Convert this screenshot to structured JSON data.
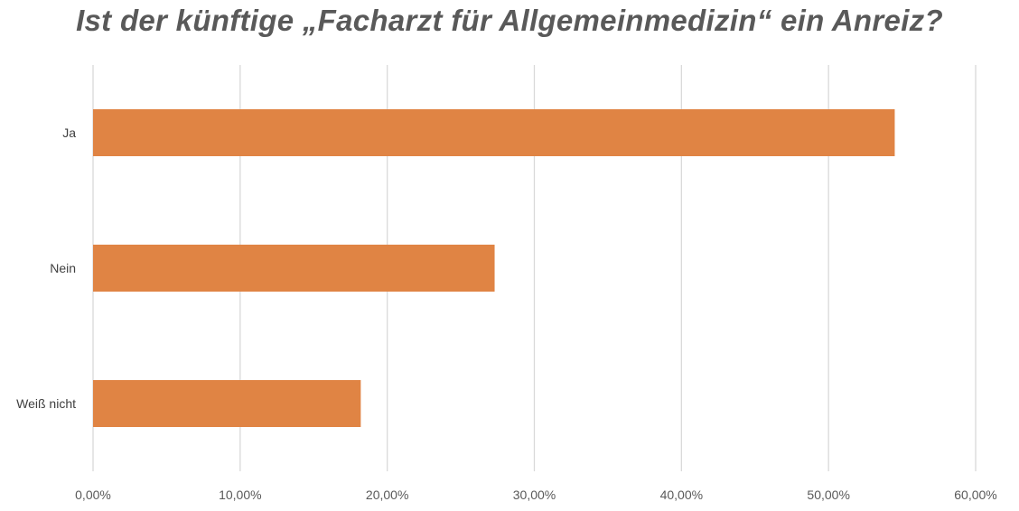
{
  "colors": {
    "bar": "#E08444",
    "grid": "#D9D9D9",
    "title": "#595959",
    "axis_text": "#595959"
  },
  "chart_data": {
    "type": "bar",
    "orientation": "horizontal",
    "title": "Ist der künftige „Facharzt für Allgemeinmedizin“ ein Anreiz?",
    "categories": [
      "Ja",
      "Nein",
      "Weiß nicht"
    ],
    "values": [
      54.5,
      27.3,
      18.2
    ],
    "xlim": [
      0,
      60
    ],
    "x_ticks": [
      0,
      10,
      20,
      30,
      40,
      50,
      60
    ],
    "x_tick_labels": [
      "0,00%",
      "10,00%",
      "20,00%",
      "30,00%",
      "40,00%",
      "50,00%",
      "60,00%"
    ],
    "grid": true,
    "legend": "none"
  }
}
